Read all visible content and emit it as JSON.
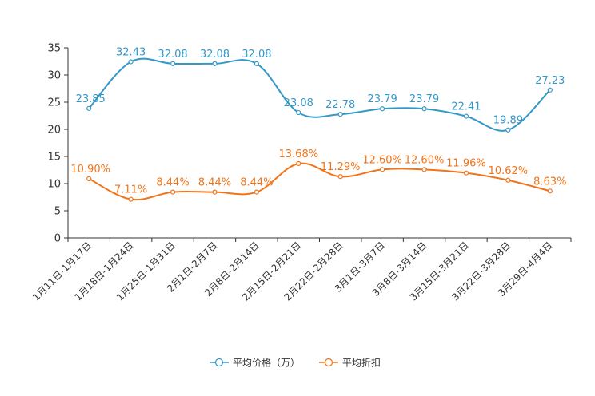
{
  "chart_data": {
    "type": "line",
    "categories": [
      "1月11日-1月17日",
      "1月18日-1月24日",
      "1月25日-1月31日",
      "2月1日-2月7日",
      "2月8日-2月14日",
      "2月15日-2月21日",
      "2月22日-2月28日",
      "3月1日-3月7日",
      "3月8日-3月14日",
      "3月15日-3月21日",
      "3月22日-3月28日",
      "3月29日-4月4日"
    ],
    "series": [
      {
        "name": "平均价格（万）",
        "color": "#3398c8",
        "values": [
          23.85,
          32.43,
          32.08,
          32.08,
          32.08,
          23.08,
          22.78,
          23.79,
          23.79,
          22.41,
          19.89,
          27.23
        ],
        "labels": [
          "23.85",
          "32.43",
          "32.08",
          "32.08",
          "32.08",
          "23.08",
          "22.78",
          "23.79",
          "23.79",
          "22.41",
          "19.89",
          "27.23"
        ]
      },
      {
        "name": "平均折扣",
        "color": "#f27418",
        "values": [
          10.9,
          7.11,
          8.44,
          8.44,
          8.44,
          13.68,
          11.29,
          12.6,
          12.6,
          11.96,
          10.62,
          8.63
        ],
        "labels": [
          "10.90%",
          "7.11%",
          "8.44%",
          "8.44%",
          "8.44%",
          "13.68%",
          "11.29%",
          "12.60%",
          "12.60%",
          "11.96%",
          "10.62%",
          "8.63%"
        ]
      }
    ],
    "yticks": [
      "0",
      "5",
      "10",
      "15",
      "20",
      "25",
      "30",
      "35"
    ],
    "ylim": [
      0,
      35
    ],
    "legend_position": "bottom"
  }
}
